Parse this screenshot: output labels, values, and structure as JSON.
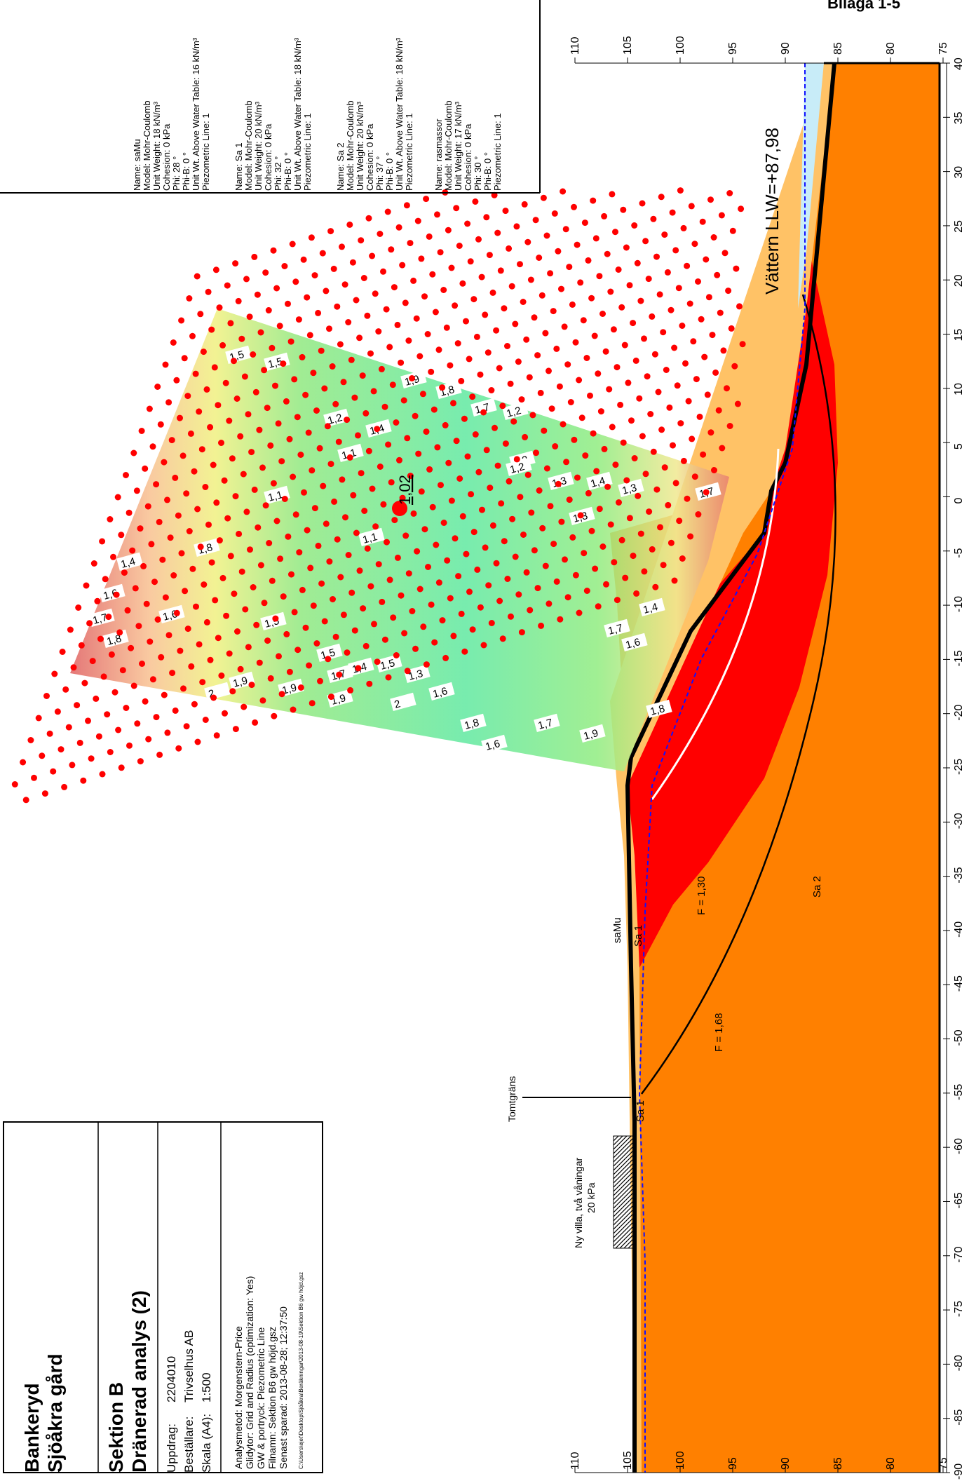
{
  "sheet_label": "Bilaga 1-5",
  "title_block": {
    "place": "Bankeryd",
    "site": "Sjöåkra gård",
    "section": "Sektion B",
    "analysis_title": "Dränerad analys (2)",
    "uppdrag_label": "Uppdrag:",
    "uppdrag_value": "2204010",
    "bestallare_label": "Beställare:",
    "bestallare_value": "Trivselhus AB",
    "skala_label": "Skala (A4):",
    "skala_value": "1:500",
    "meta_lines": [
      "Analysmetod:   Morgenstern-Price",
      "Glidytor:  Grid and Radius (optimization: Yes)",
      "GW & portryck:  Piezometric Line",
      "Filnamn:  Sektion B6 gw höjd.gsz",
      "Senast sparad:   2013-08-28;  12:37:50"
    ],
    "path": "C:\\Users\\ejet\\Desktop\\Sjöåkra\\Beräkningar\\2013-08-19\\Sektion B6 gw höjd.gsz"
  },
  "materials": [
    {
      "lines": [
        "Name: saMu",
        "Model: Mohr-Coulomb",
        "Unit Weight: 18 kN/m³",
        "Cohesion: 0 kPa",
        "Phi: 28 °",
        "Phi-B: 0 °",
        "Unit Wt. Above Water Table: 16 kN/m³",
        "Piezometric Line: 1"
      ]
    },
    {
      "lines": [
        "Name: Sa 1",
        "Model: Mohr-Coulomb",
        "Unit Weight: 20 kN/m³",
        "Cohesion: 0 kPa",
        "Phi: 32 °",
        "Phi-B: 0 °",
        "Unit Wt. Above Water Table: 18 kN/m³",
        "Piezometric Line: 1"
      ]
    },
    {
      "lines": [
        "Name: Sa 2",
        "Model: Mohr-Coulomb",
        "Unit Weight: 20 kN/m³",
        "Cohesion: 0 kPa",
        "Phi: 37 °",
        "Phi-B: 0 °",
        "Unit Wt. Above Water Table: 18 kN/m³",
        "Piezometric Line: 1"
      ]
    },
    {
      "lines": [
        "Name: rasmassor",
        "Model: Mohr-Coulomb",
        "Unit Weight: 17 kN/m³",
        "Cohesion: 0 kPa",
        "Phi: 30 °",
        "Phi-B: 0 °",
        "Piezometric Line: 1"
      ]
    }
  ],
  "labels": {
    "water_level": "Vättern LLW=+87,98",
    "critical_fs": "1,02",
    "fs_lower": "F = 1,30",
    "fs_upper": "F = 1,68",
    "layer_samu": "saMu",
    "layer_sa1_a": "Sa 1",
    "layer_sa1_b": "Sa 1",
    "layer_sa2": "Sa 2",
    "tomtgrans": "Tomtgräns",
    "house_line1": "Ny villa, två våningar",
    "house_line2": "20 kPa"
  },
  "contour_labels": [
    "1,5",
    "1,5",
    "1,9",
    "1,8",
    "1,7",
    "1,2",
    "1,2",
    "1,4",
    "1,1",
    "1,2",
    "1,3",
    "1,4",
    "1,3",
    "1,7",
    "1,1",
    "1,1",
    "1,2",
    "1,3",
    "1,8",
    "1,4",
    "1,6",
    "1,6",
    "1,7",
    "1,8",
    "1,5",
    "1,5",
    "1,4",
    "1,5",
    "1,3",
    "1,9",
    "1,9",
    "1,7",
    "1,6",
    "1,8",
    "2",
    "2",
    "1,9",
    "1,4",
    "1,6",
    "1,7",
    "1,8",
    "1,9",
    "1,6",
    "1,7"
  ],
  "axes": {
    "elevation_ticks": [
      "110",
      "105",
      "100",
      "95",
      "90",
      "85",
      "80",
      "75"
    ],
    "distance_ticks": [
      "40",
      "35",
      "30",
      "25",
      "20",
      "15",
      "10",
      "5",
      "0",
      "-5",
      "-10",
      "-15",
      "-20",
      "-25",
      "-30",
      "-35",
      "-40",
      "-45",
      "-50",
      "-55",
      "-60",
      "-65",
      "-70",
      "-75",
      "-80",
      "-85",
      "-90"
    ]
  },
  "colors": {
    "orange": "#ff8000",
    "red": "#ff0000",
    "sand": "#ffc266",
    "water": "#c8ecf8",
    "piezo": "#1010ff",
    "grid_dot": "#ff0000"
  }
}
